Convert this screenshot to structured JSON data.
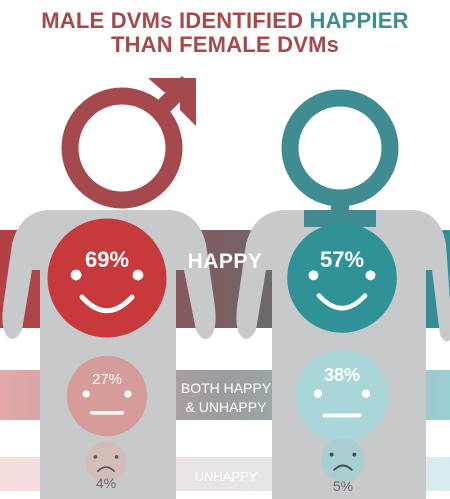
{
  "title": {
    "line1_part1": "MALE DVMs IDENTIFIED ",
    "line1_part2": "HAPPIER",
    "line2": "THAN FEMALE DVMs"
  },
  "colors": {
    "male_red": "#a6494c",
    "male_face_red": "#c8393b",
    "female_teal": "#3f8d93",
    "female_face_teal": "#2f9297",
    "gray_body": "#c8c9cb",
    "band_happy_center": "#7a5f63",
    "band_mid_center": "#9a9ca0",
    "band_unhappy": "#f3e2e2"
  },
  "chart_data": {
    "type": "infographic",
    "title": "MALE DVMs IDENTIFIED HAPPIER THAN FEMALE DVMs",
    "categories": [
      "HAPPY",
      "BOTH HAPPY & UNHAPPY",
      "UNHAPPY"
    ],
    "series": [
      {
        "name": "",
        "values": [
          69,
          27,
          4
        ]
      },
      {
        "name": "",
        "values": [
          57,
          38,
          5
        ]
      }
    ]
  },
  "labels": {
    "happy": "HAPPY",
    "both_line1": "BOTH HAPPY",
    "both_line2": "& UNHAPPY",
    "unhappy": "UNHAPPY"
  },
  "values": {
    "male_happy": "69%",
    "male_both": "27%",
    "male_unhappy": "4%",
    "female_happy": "57%",
    "female_both": "38%",
    "female_unhappy": "5%"
  },
  "icons": [
    "male-symbol-icon",
    "female-symbol-icon",
    "happy-face-icon",
    "neutral-face-icon",
    "sad-face-icon"
  ]
}
